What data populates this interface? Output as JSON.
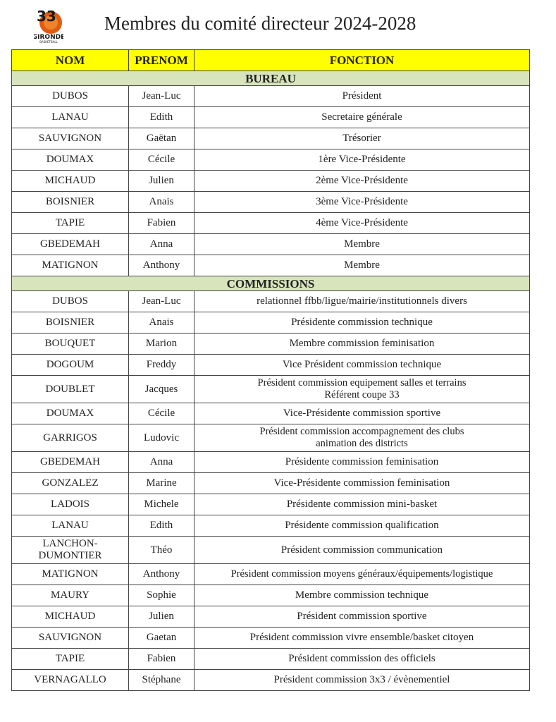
{
  "logo": {
    "text": "GIRONDE",
    "subtext": "BASKETBALL",
    "colors": [
      "#1a1a1a",
      "#e05a10"
    ]
  },
  "title": "Membres du comité directeur 2024-2028",
  "headers": [
    "NOM",
    "PRENOM",
    "FONCTION"
  ],
  "colors": {
    "header_bg": "#ffff00",
    "section_bg": "#d8e4bc"
  },
  "sections": [
    {
      "label": "BUREAU",
      "rows": [
        [
          "DUBOS",
          "Jean-Luc",
          "Président"
        ],
        [
          "LANAU",
          "Edith",
          "Secretaire générale"
        ],
        [
          "SAUVIGNON",
          "Gaëtan",
          "Trésorier"
        ],
        [
          "DOUMAX",
          "Cécile",
          "1ère Vice-Présidente"
        ],
        [
          "MICHAUD",
          "Julien",
          "2ème Vice-Présidente"
        ],
        [
          "BOISNIER",
          "Anais",
          "3ème Vice-Présidente"
        ],
        [
          "TAPIE",
          "Fabien",
          "4ème Vice-Présidente"
        ],
        [
          "GBEDEMAH",
          "Anna",
          "Membre"
        ],
        [
          "MATIGNON",
          "Anthony",
          "Membre"
        ]
      ]
    },
    {
      "label": "COMMISSIONS",
      "rows": [
        [
          "DUBOS",
          "Jean-Luc",
          "relationnel ffbb/ligue/mairie/institutionnels divers"
        ],
        [
          "BOISNIER",
          "Anais",
          "Présidente commission technique"
        ],
        [
          "BOUQUET",
          "Marion",
          "Membre commission feminisation"
        ],
        [
          "DOGOUM",
          "Freddy",
          "Vice Président commission technique"
        ],
        [
          "DOUBLET",
          "Jacques",
          "Président commission equipement salles et terrains\nRéférent coupe 33"
        ],
        [
          "DOUMAX",
          "Cécile",
          "Vice-Présidente commission sportive"
        ],
        [
          "GARRIGOS",
          "Ludovic",
          "Président commission accompagnement des clubs\nanimation des districts"
        ],
        [
          "GBEDEMAH",
          "Anna",
          "Présidente commission feminisation"
        ],
        [
          "GONZALEZ",
          "Marine",
          "Vice-Présidente commission feminisation"
        ],
        [
          "LADOIS",
          "Michele",
          "Présidente commission mini-basket"
        ],
        [
          "LANAU",
          "Edith",
          "Présidente commission qualification"
        ],
        [
          "LANCHON-\nDUMONTIER",
          "Théo",
          "Président commission communication"
        ],
        [
          "MATIGNON",
          "Anthony",
          "Président commission moyens généraux/équipements/logistique"
        ],
        [
          "MAURY",
          "Sophie",
          "Membre commission technique"
        ],
        [
          "MICHAUD",
          "Julien",
          "Président commission sportive"
        ],
        [
          "SAUVIGNON",
          "Gaetan",
          "Président commission vivre ensemble/basket citoyen"
        ],
        [
          "TAPIE",
          "Fabien",
          "Président commission des officiels"
        ],
        [
          "VERNAGALLO",
          "Stéphane",
          "Président commission 3x3 / évènementiel"
        ]
      ]
    }
  ]
}
